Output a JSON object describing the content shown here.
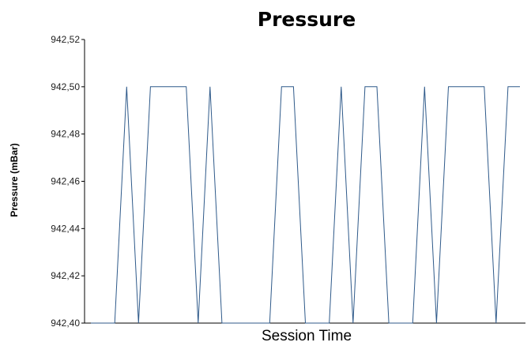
{
  "chart_data": {
    "type": "line",
    "title": "Pressure",
    "xlabel": "Session Time",
    "ylabel": "Pressure (mBar)",
    "ylim": [
      942.4,
      942.52
    ],
    "yticks": [
      "942,52",
      "942,50",
      "942,48",
      "942,46",
      "942,44",
      "942,42",
      "942,40"
    ],
    "ytick_values": [
      942.52,
      942.5,
      942.48,
      942.46,
      942.44,
      942.42,
      942.4
    ],
    "grid": false,
    "series_color": "#2f5a8a",
    "series": [
      {
        "values": [
          942.4,
          942.4,
          942.4,
          942.5,
          942.4,
          942.5,
          942.5,
          942.5,
          942.5,
          942.4,
          942.5,
          942.4,
          942.4,
          942.4,
          942.4,
          942.4,
          942.5,
          942.5,
          942.4,
          942.4,
          942.4,
          942.5,
          942.4,
          942.5,
          942.5,
          942.4,
          942.4,
          942.4,
          942.5,
          942.4,
          942.5,
          942.5,
          942.5,
          942.5,
          942.4,
          942.5,
          942.5
        ]
      }
    ]
  }
}
